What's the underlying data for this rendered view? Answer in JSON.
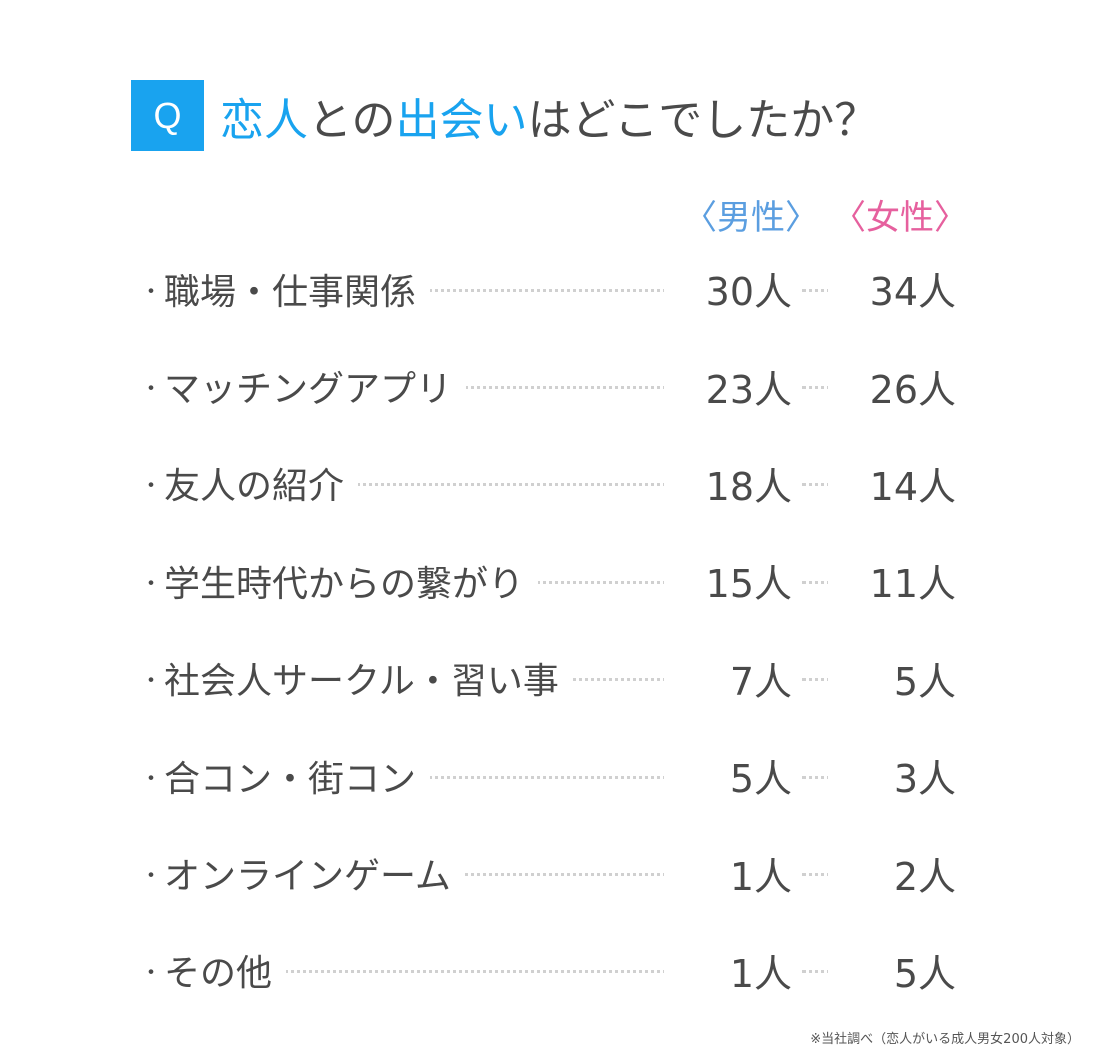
{
  "header": {
    "q_label": "Q",
    "title_parts": [
      {
        "text": "恋人",
        "highlight": true
      },
      {
        "text": "との",
        "highlight": false
      },
      {
        "text": "出会い",
        "highlight": true
      },
      {
        "text": "はどこでしたか？",
        "highlight": false
      }
    ]
  },
  "columns": {
    "male": "〈男性〉",
    "female": "〈女性〉"
  },
  "colors": {
    "accent": "#19a3ef",
    "male": "#5b9ee0",
    "female": "#e6609e",
    "text": "#4a4a4a"
  },
  "rows": [
    {
      "label": "職場・仕事関係",
      "male": "30人",
      "female": "34人"
    },
    {
      "label": "マッチングアプリ",
      "male": "23人",
      "female": "26人"
    },
    {
      "label": "友人の紹介",
      "male": "18人",
      "female": "14人"
    },
    {
      "label": "学生時代からの繋がり",
      "male": "15人",
      "female": "11人"
    },
    {
      "label": "社会人サークル・習い事",
      "male": "7人",
      "female": "5人"
    },
    {
      "label": "合コン・街コン",
      "male": "5人",
      "female": "3人"
    },
    {
      "label": "オンラインゲーム",
      "male": "1人",
      "female": "2人"
    },
    {
      "label": "その他",
      "male": "1人",
      "female": "5人"
    }
  ],
  "footnote": "※当社調べ（恋人がいる成人男女200人対象）",
  "chart_data": {
    "type": "table",
    "title": "恋人との出会いはどこでしたか？",
    "categories": [
      "職場・仕事関係",
      "マッチングアプリ",
      "友人の紹介",
      "学生時代からの繋がり",
      "社会人サークル・習い事",
      "合コン・街コン",
      "オンラインゲーム",
      "その他"
    ],
    "series": [
      {
        "name": "男性",
        "values": [
          30,
          23,
          18,
          15,
          7,
          5,
          1,
          1
        ]
      },
      {
        "name": "女性",
        "values": [
          34,
          26,
          14,
          11,
          5,
          3,
          2,
          5
        ]
      }
    ],
    "unit": "人",
    "note": "※当社調べ（恋人がいる成人男女200人対象）"
  }
}
